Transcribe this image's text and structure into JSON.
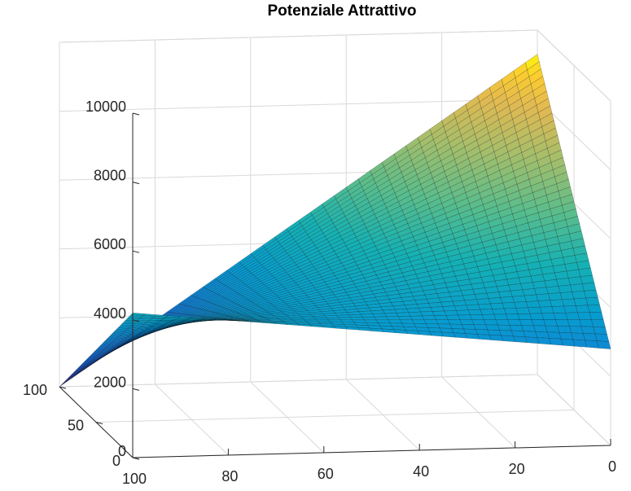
{
  "chart_data": {
    "type": "surface",
    "title": "Potenziale Attrattivo",
    "xlabel": "",
    "ylabel": "",
    "zlabel": "",
    "colormap": "parula",
    "x_ticks": [
      "100",
      "80",
      "60",
      "40",
      "20",
      "0"
    ],
    "y_ticks": [
      "0",
      "50",
      "100"
    ],
    "z_ticks": [
      "0",
      "2000",
      "4000",
      "6000",
      "8000",
      "10000"
    ],
    "xlim": [
      0,
      100
    ],
    "ylim": [
      0,
      100
    ],
    "zlim": [
      0,
      10000
    ],
    "grid": true,
    "corners": [
      {
        "x": 0,
        "y": 0,
        "z": 2800
      },
      {
        "x": 100,
        "y": 0,
        "z": 4200
      },
      {
        "x": 100,
        "y": 100,
        "z": 0
      },
      {
        "x": 0,
        "y": 100,
        "z": 9300
      }
    ]
  }
}
